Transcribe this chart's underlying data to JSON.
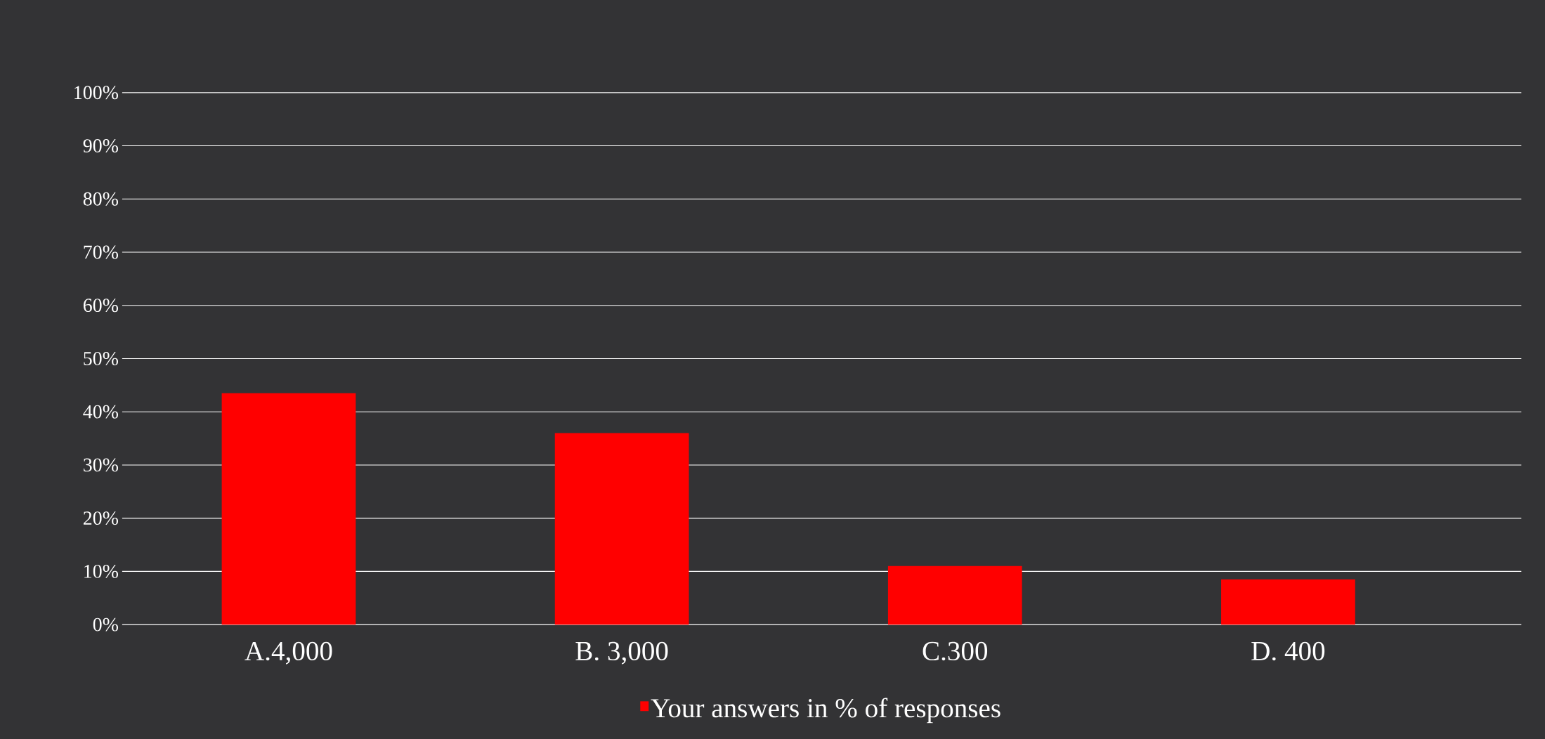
{
  "chart_data": {
    "type": "bar",
    "categories": [
      "A.4,000",
      "B. 3,000",
      "C.300",
      "D. 400"
    ],
    "series": [
      {
        "name": "Your answers in % of responses",
        "color": "#ff0000",
        "values": [
          43.5,
          36,
          11,
          8.5
        ]
      }
    ],
    "ylim": [
      0,
      100
    ],
    "yticks": [
      {
        "value": 0,
        "label": "0%"
      },
      {
        "value": 10,
        "label": "10%"
      },
      {
        "value": 20,
        "label": "20%"
      },
      {
        "value": 30,
        "label": "30%"
      },
      {
        "value": 40,
        "label": "40%"
      },
      {
        "value": 50,
        "label": "50%"
      },
      {
        "value": 60,
        "label": "60%"
      },
      {
        "value": 70,
        "label": "70%"
      },
      {
        "value": 80,
        "label": "80%"
      },
      {
        "value": 90,
        "label": "90%"
      },
      {
        "value": 100,
        "label": "100%"
      }
    ],
    "grid": true,
    "legend": "bottom"
  }
}
